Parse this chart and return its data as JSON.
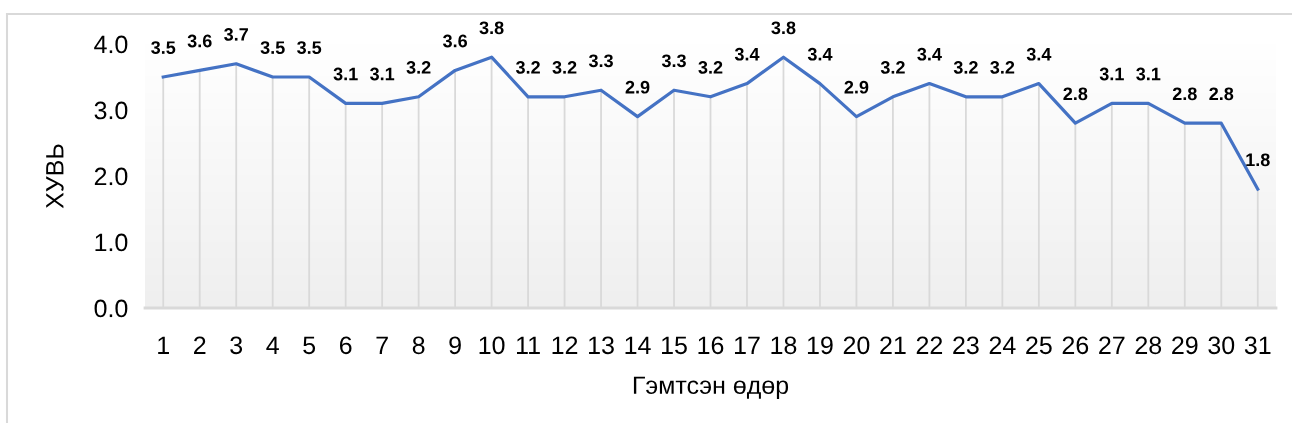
{
  "chart_data": {
    "type": "line",
    "xlabel": "Гэмтсэн өдөр",
    "ylabel": "ХУВЬ",
    "categories": [
      "1",
      "2",
      "3",
      "4",
      "5",
      "6",
      "7",
      "8",
      "9",
      "10",
      "11",
      "12",
      "13",
      "14",
      "15",
      "16",
      "17",
      "18",
      "19",
      "20",
      "21",
      "22",
      "23",
      "24",
      "25",
      "26",
      "27",
      "28",
      "29",
      "30",
      "31"
    ],
    "series": [
      {
        "color": "#4472c4",
        "values": [
          3.5,
          3.6,
          3.7,
          3.5,
          3.5,
          3.1,
          3.1,
          3.2,
          3.6,
          3.8,
          3.2,
          3.2,
          3.3,
          2.9,
          3.3,
          3.2,
          3.4,
          3.8,
          3.4,
          2.9,
          3.2,
          3.4,
          3.2,
          3.2,
          3.4,
          2.8,
          3.1,
          3.1,
          2.8,
          2.8,
          1.8
        ]
      }
    ],
    "ylim": [
      0,
      4
    ],
    "yticks": [
      {
        "value": 0,
        "label": "0.0"
      },
      {
        "value": 1,
        "label": "1.0"
      },
      {
        "value": 2,
        "label": "2.0"
      },
      {
        "value": 3,
        "label": "3.0"
      },
      {
        "value": 4,
        "label": "4.0"
      }
    ],
    "data_labels": true,
    "grid": "x",
    "line_style": "solid"
  }
}
